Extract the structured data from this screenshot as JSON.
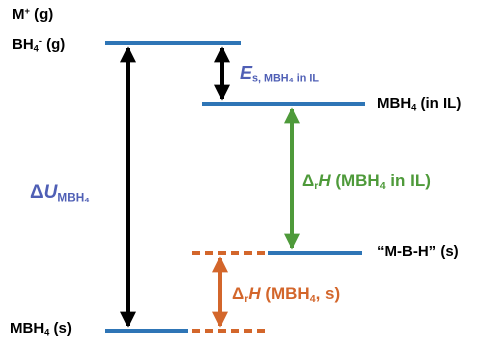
{
  "colors": {
    "level": "#2e75b6",
    "black": "#000000",
    "blue_text": "#4f5fb5",
    "green": "#4e9a3a",
    "orange": "#d3662b"
  },
  "labels": {
    "gas_cation": {
      "main": "M",
      "sup": "+",
      "rest": " (g)"
    },
    "gas_anion": {
      "main": "BH",
      "sub": "4",
      "sup": "-",
      "rest": " (g)"
    },
    "solid_bottom": {
      "main": "MBH",
      "sub": "4",
      "rest": " (s)"
    },
    "il_level": {
      "main": "MBH",
      "sub": "4",
      "rest": " (in IL)"
    },
    "mbh_level": {
      "text": "“M-B-H” (s)"
    },
    "delta_u": {
      "symbol": "Δ",
      "var": "U",
      "sub": "MBH₄"
    },
    "e_solv": {
      "var": "E",
      "sub": "s, MBH₄ in IL"
    },
    "dh_il": {
      "delta": "Δ",
      "r": "r",
      "var": "H",
      "rest1": " (MBH",
      "sub": "4",
      "rest2": " in IL)"
    },
    "dh_s": {
      "delta": "Δ",
      "r": "r",
      "var": "H",
      "rest1": " (MBH",
      "sub": "4",
      "rest2": ", s)"
    }
  }
}
